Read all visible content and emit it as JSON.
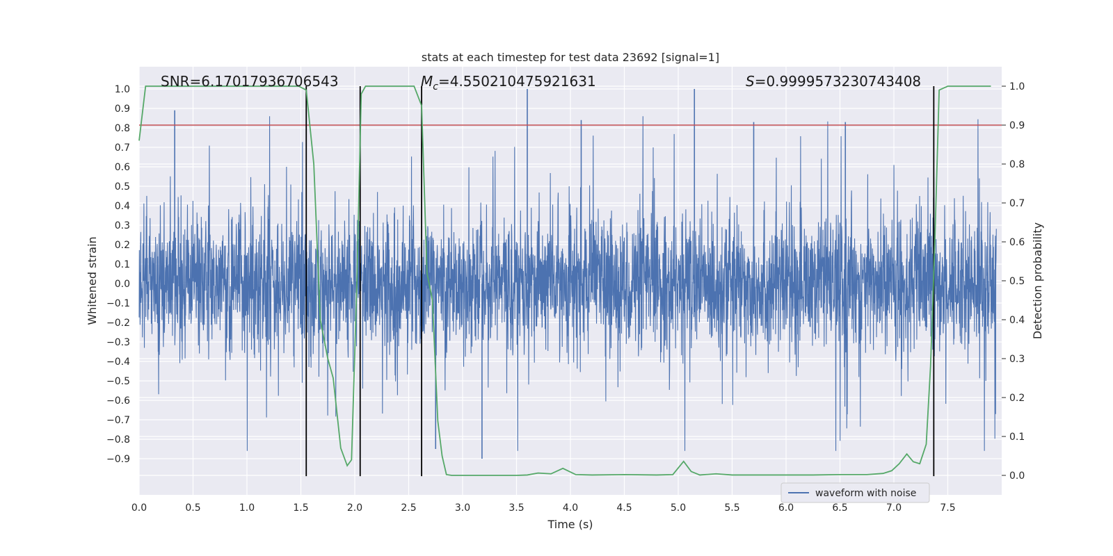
{
  "chart_data": {
    "type": "line",
    "title": "stats at each timestep for test data 23692 [signal=1]",
    "xlabel": "Time (s)",
    "ylabel": "Whitened strain",
    "y2label": "Detection probability",
    "xlim": [
      0.0,
      8.0
    ],
    "ylim": [
      -1.0,
      1.05
    ],
    "y2lim": [
      -0.05,
      1.05
    ],
    "xticks": [
      "0.0",
      "0.5",
      "1.0",
      "1.5",
      "2.0",
      "2.5",
      "3.0",
      "3.5",
      "4.0",
      "4.5",
      "5.0",
      "5.5",
      "6.0",
      "6.5",
      "7.0",
      "7.5"
    ],
    "yticks": [
      "-0.9",
      "-0.8",
      "-0.7",
      "-0.6",
      "-0.5",
      "-0.4",
      "-0.3",
      "-0.2",
      "-0.1",
      "0.0",
      "0.1",
      "0.2",
      "0.3",
      "0.4",
      "0.5",
      "0.6",
      "0.7",
      "0.8",
      "0.9",
      "1.0"
    ],
    "y2ticks": [
      "0.0",
      "0.1",
      "0.2",
      "0.3",
      "0.4",
      "0.5",
      "0.6",
      "0.7",
      "0.8",
      "0.9",
      "1.0"
    ],
    "grid": true,
    "legend_position": "lower-right",
    "annotations": {
      "snr": "SNR=6.17017936706543",
      "mc_symbol": "M",
      "mc_sub": "c",
      "mc_value": "=4.550210475921631",
      "s_symbol": "S",
      "s_value": "=0.9999573230743408"
    },
    "series": [
      {
        "name": "waveform with noise",
        "axis": "left",
        "color": "#4c72b0",
        "description_range": "dense noise band between about -0.4 and 0.4 with spikes to about ±0.9",
        "peaks": [
          {
            "x": 0.33,
            "y": 0.89
          },
          {
            "x": 3.6,
            "y": 1.0
          },
          {
            "x": 4.1,
            "y": 0.84
          },
          {
            "x": 5.15,
            "y": 1.0
          },
          {
            "x": 5.7,
            "y": 0.83
          },
          {
            "x": 6.55,
            "y": 0.83
          },
          {
            "x": 3.18,
            "y": -0.9
          },
          {
            "x": 2.75,
            "y": -0.85
          }
        ]
      },
      {
        "name": "Detection probability",
        "axis": "right",
        "color": "#55a868",
        "x": [
          0.0,
          0.06,
          0.15,
          0.3,
          0.5,
          0.7,
          0.9,
          1.1,
          1.3,
          1.48,
          1.55,
          1.62,
          1.68,
          1.75,
          1.8,
          1.87,
          1.93,
          1.97,
          2.02,
          2.06,
          2.1,
          2.14,
          2.2,
          2.27,
          2.33,
          2.4,
          2.5,
          2.55,
          2.62,
          2.67,
          2.72,
          2.77,
          2.81,
          2.85,
          2.9,
          3.0,
          3.2,
          3.4,
          3.5,
          3.6,
          3.7,
          3.82,
          3.93,
          4.05,
          4.2,
          4.5,
          4.8,
          4.95,
          5.05,
          5.12,
          5.2,
          5.35,
          5.5,
          5.75,
          6.0,
          6.25,
          6.5,
          6.75,
          6.9,
          6.98,
          7.05,
          7.12,
          7.18,
          7.24,
          7.3,
          7.34,
          7.38,
          7.42,
          7.5,
          7.7,
          7.9
        ],
        "y": [
          0.86,
          1.0,
          1.0,
          1.0,
          1.0,
          1.0,
          1.0,
          1.0,
          1.0,
          1.0,
          0.99,
          0.8,
          0.4,
          0.3,
          0.25,
          0.07,
          0.025,
          0.04,
          0.5,
          0.98,
          1.0,
          1.0,
          1.0,
          1.0,
          1.0,
          1.0,
          1.0,
          1.0,
          0.95,
          0.52,
          0.45,
          0.14,
          0.05,
          0.002,
          0.0,
          0.0,
          0.0,
          0.0,
          0.0,
          0.001,
          0.006,
          0.004,
          0.018,
          0.002,
          0.001,
          0.002,
          0.001,
          0.002,
          0.036,
          0.01,
          0.001,
          0.004,
          0.001,
          0.001,
          0.001,
          0.001,
          0.002,
          0.002,
          0.005,
          0.012,
          0.03,
          0.055,
          0.035,
          0.03,
          0.08,
          0.28,
          0.6,
          0.99,
          1.0,
          1.0,
          1.0
        ]
      },
      {
        "name": "threshold",
        "axis": "right",
        "color": "#c44e52",
        "y": 0.9
      }
    ],
    "vertical_lines": [
      1.55,
      2.05,
      2.62,
      7.37
    ]
  }
}
